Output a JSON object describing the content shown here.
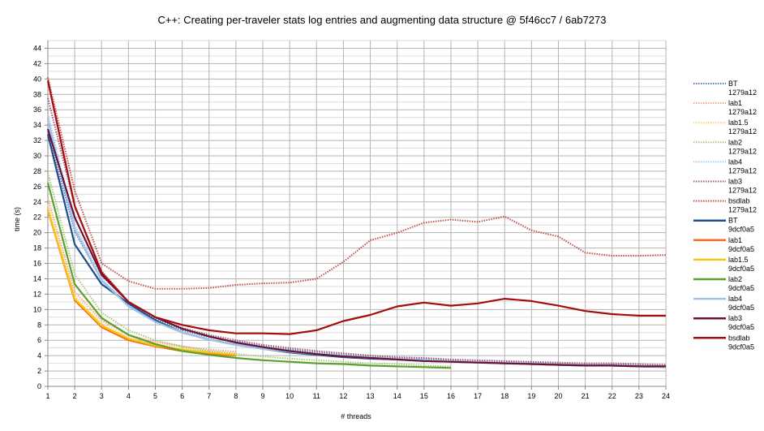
{
  "chart_data": {
    "type": "line",
    "title": "C++: Creating per-traveler stats log entries and augmenting data structure @ 5f46cc7 / 6ab7273",
    "xlabel": "# threads",
    "ylabel": "time (s)",
    "xlim": [
      1,
      24
    ],
    "ylim": [
      0,
      45
    ],
    "x_ticks": [
      "1",
      "2",
      "3",
      "4",
      "5",
      "6",
      "7",
      "8",
      "9",
      "10",
      "11",
      "12",
      "13",
      "14",
      "15",
      "16",
      "17",
      "18",
      "19",
      "20",
      "21",
      "22",
      "23",
      "24"
    ],
    "y_ticks": [
      "0",
      "2",
      "4",
      "6",
      "8",
      "10",
      "12",
      "14",
      "16",
      "18",
      "20",
      "22",
      "24",
      "26",
      "28",
      "30",
      "32",
      "34",
      "36",
      "38",
      "40",
      "42",
      "44"
    ],
    "grid": true,
    "legend_position": "right",
    "series": [
      {
        "name": "BT",
        "version": "1279a12",
        "color": "#4f7cb8",
        "style": "dotted",
        "x": [
          1,
          2,
          3,
          4,
          5,
          6,
          7,
          8,
          9,
          10,
          11,
          12,
          13,
          14,
          15,
          16,
          17,
          18,
          19,
          20,
          21,
          22,
          23,
          24
        ],
        "values": [
          33.2,
          20.2,
          13.8,
          10.6,
          8.8,
          7.3,
          6.4,
          5.8,
          5.2,
          4.8,
          4.4,
          4.1,
          3.9,
          3.7,
          3.6,
          3.4,
          3.3,
          3.2,
          3.1,
          3.0,
          2.9,
          2.9,
          2.8,
          2.7
        ]
      },
      {
        "name": "lab1",
        "version": "1279a12",
        "color": "#f4a582",
        "style": "dotted",
        "x": [
          1,
          2,
          3,
          4,
          5,
          6,
          7,
          8
        ],
        "values": [
          24.5,
          12.3,
          8.6,
          6.7,
          5.8,
          5.2,
          4.8,
          4.5
        ]
      },
      {
        "name": "lab1.5",
        "version": "1279a12",
        "color": "#f5d77a",
        "style": "dotted",
        "x": [
          1,
          2,
          3,
          4,
          5,
          6,
          7,
          8
        ],
        "values": [
          23.6,
          11.8,
          8.2,
          6.4,
          5.6,
          5.0,
          4.6,
          4.3
        ]
      },
      {
        "name": "lab2",
        "version": "1279a12",
        "color": "#a6c97a",
        "style": "dotted",
        "x": [
          1,
          2,
          3,
          4,
          5,
          6,
          7,
          8,
          9,
          10,
          11,
          12,
          13,
          14,
          15,
          16
        ],
        "values": [
          27.8,
          14.6,
          9.6,
          7.3,
          6.0,
          5.2,
          4.6,
          4.2,
          3.9,
          3.6,
          3.4,
          3.2,
          3.0,
          2.9,
          2.7,
          2.6
        ]
      },
      {
        "name": "lab4",
        "version": "1279a12",
        "color": "#a8cbee",
        "style": "dotted",
        "x": [
          1,
          2,
          3,
          4,
          5,
          6,
          7,
          8,
          9,
          10,
          11,
          12,
          13,
          14,
          15,
          16,
          17,
          18,
          19,
          20,
          21,
          22,
          23,
          24
        ],
        "values": [
          35.5,
          21.0,
          14.0,
          10.5,
          8.4,
          7.0,
          6.1,
          5.5,
          5.0,
          4.6,
          4.3,
          4.0,
          3.8,
          3.6,
          3.4,
          3.3,
          3.2,
          3.1,
          3.0,
          2.9,
          2.8,
          2.8,
          2.7,
          2.6
        ]
      },
      {
        "name": "lab3",
        "version": "1279a12",
        "color": "#a05a7a",
        "style": "dotted",
        "x": [
          1,
          2,
          3,
          4,
          5,
          6,
          7,
          8,
          9,
          10,
          11,
          12,
          13,
          14,
          15,
          16,
          17,
          18,
          19,
          20,
          21,
          22,
          23,
          24
        ],
        "values": [
          37.5,
          23.5,
          15.0,
          11.0,
          9.0,
          7.6,
          6.7,
          6.0,
          5.4,
          5.0,
          4.6,
          4.3,
          4.0,
          3.8,
          3.7,
          3.5,
          3.4,
          3.3,
          3.2,
          3.1,
          3.0,
          3.0,
          2.9,
          2.8
        ]
      },
      {
        "name": "bsdlab",
        "version": "1279a12",
        "color": "#c0504d",
        "style": "dotted",
        "x": [
          1,
          2,
          3,
          4,
          5,
          6,
          7,
          8,
          9,
          10,
          11,
          12,
          13,
          14,
          15,
          16,
          17,
          18,
          19,
          20,
          21,
          22,
          23,
          24
        ],
        "values": [
          40.2,
          25.5,
          16.0,
          13.7,
          12.7,
          12.7,
          12.8,
          13.2,
          13.4,
          13.5,
          14.0,
          16.2,
          19.0,
          20.0,
          21.3,
          21.7,
          21.4,
          22.1,
          20.3,
          19.5,
          17.4,
          17.0,
          17.0,
          17.1
        ]
      },
      {
        "name": "BT",
        "version": "9dcf0a5",
        "color": "#1f4e8c",
        "style": "solid",
        "x": [
          1,
          2,
          3,
          4,
          5,
          6,
          7,
          8,
          9,
          10,
          11,
          12,
          13,
          14,
          15,
          16,
          17,
          18,
          19,
          20,
          21,
          22,
          23,
          24
        ],
        "values": [
          32.8,
          18.5,
          13.3,
          10.8,
          8.6,
          7.0,
          6.1,
          5.4,
          4.9,
          4.4,
          4.1,
          3.8,
          3.6,
          3.5,
          3.3,
          3.2,
          3.1,
          3.0,
          2.9,
          2.8,
          2.7,
          2.7,
          2.6,
          2.5
        ]
      },
      {
        "name": "lab1",
        "version": "9dcf0a5",
        "color": "#ff6a1a",
        "style": "solid",
        "x": [
          1,
          2,
          3,
          4,
          5,
          6,
          7,
          8
        ],
        "values": [
          22.9,
          11.2,
          7.7,
          6.0,
          5.2,
          4.6,
          4.2,
          4.0
        ]
      },
      {
        "name": "lab1.5",
        "version": "9dcf0a5",
        "color": "#f2c613",
        "style": "solid",
        "x": [
          1,
          2,
          3,
          4,
          5,
          6,
          7,
          8
        ],
        "values": [
          23.0,
          11.4,
          7.9,
          6.2,
          5.3,
          4.8,
          4.4,
          4.1
        ]
      },
      {
        "name": "lab2",
        "version": "9dcf0a5",
        "color": "#5e9e2f",
        "style": "solid",
        "x": [
          1,
          2,
          3,
          4,
          5,
          6,
          7,
          8,
          9,
          10,
          11,
          12,
          13,
          14,
          15,
          16
        ],
        "values": [
          26.5,
          13.3,
          8.9,
          6.7,
          5.5,
          4.6,
          4.1,
          3.7,
          3.4,
          3.2,
          3.0,
          2.9,
          2.7,
          2.6,
          2.5,
          2.4
        ]
      },
      {
        "name": "lab4",
        "version": "9dcf0a5",
        "color": "#9dc3ea",
        "style": "solid",
        "x": [
          1,
          2,
          3,
          4,
          5,
          6,
          7,
          8,
          9,
          10,
          11,
          12,
          13,
          14,
          15,
          16,
          17,
          18,
          19,
          20,
          21,
          22,
          23,
          24
        ],
        "values": [
          34.7,
          20.5,
          13.8,
          10.4,
          8.4,
          7.0,
          6.1,
          5.4,
          4.9,
          4.5,
          4.2,
          3.9,
          3.7,
          3.5,
          3.4,
          3.2,
          3.1,
          3.0,
          2.9,
          2.8,
          2.7,
          2.7,
          2.6,
          2.5
        ]
      },
      {
        "name": "lab3",
        "version": "9dcf0a5",
        "color": "#6b1235",
        "style": "solid",
        "x": [
          1,
          2,
          3,
          4,
          5,
          6,
          7,
          8,
          9,
          10,
          11,
          12,
          13,
          14,
          15,
          16,
          17,
          18,
          19,
          20,
          21,
          22,
          23,
          24
        ],
        "values": [
          33.5,
          22.0,
          14.5,
          11.0,
          9.0,
          7.5,
          6.5,
          5.7,
          5.1,
          4.6,
          4.2,
          3.9,
          3.7,
          3.5,
          3.3,
          3.2,
          3.1,
          3.0,
          2.9,
          2.8,
          2.7,
          2.7,
          2.6,
          2.6
        ]
      },
      {
        "name": "bsdlab",
        "version": "9dcf0a5",
        "color": "#a30d0d",
        "style": "solid",
        "x": [
          1,
          2,
          3,
          4,
          5,
          6,
          7,
          8,
          9,
          10,
          11,
          12,
          13,
          14,
          15,
          16,
          17,
          18,
          19,
          20,
          21,
          22,
          23,
          24
        ],
        "values": [
          39.8,
          23.5,
          14.8,
          11.0,
          9.0,
          8.0,
          7.3,
          6.9,
          6.9,
          6.8,
          7.3,
          8.5,
          9.3,
          10.4,
          10.9,
          10.5,
          10.8,
          11.4,
          11.1,
          10.5,
          9.8,
          9.4,
          9.2,
          9.2
        ]
      }
    ]
  }
}
